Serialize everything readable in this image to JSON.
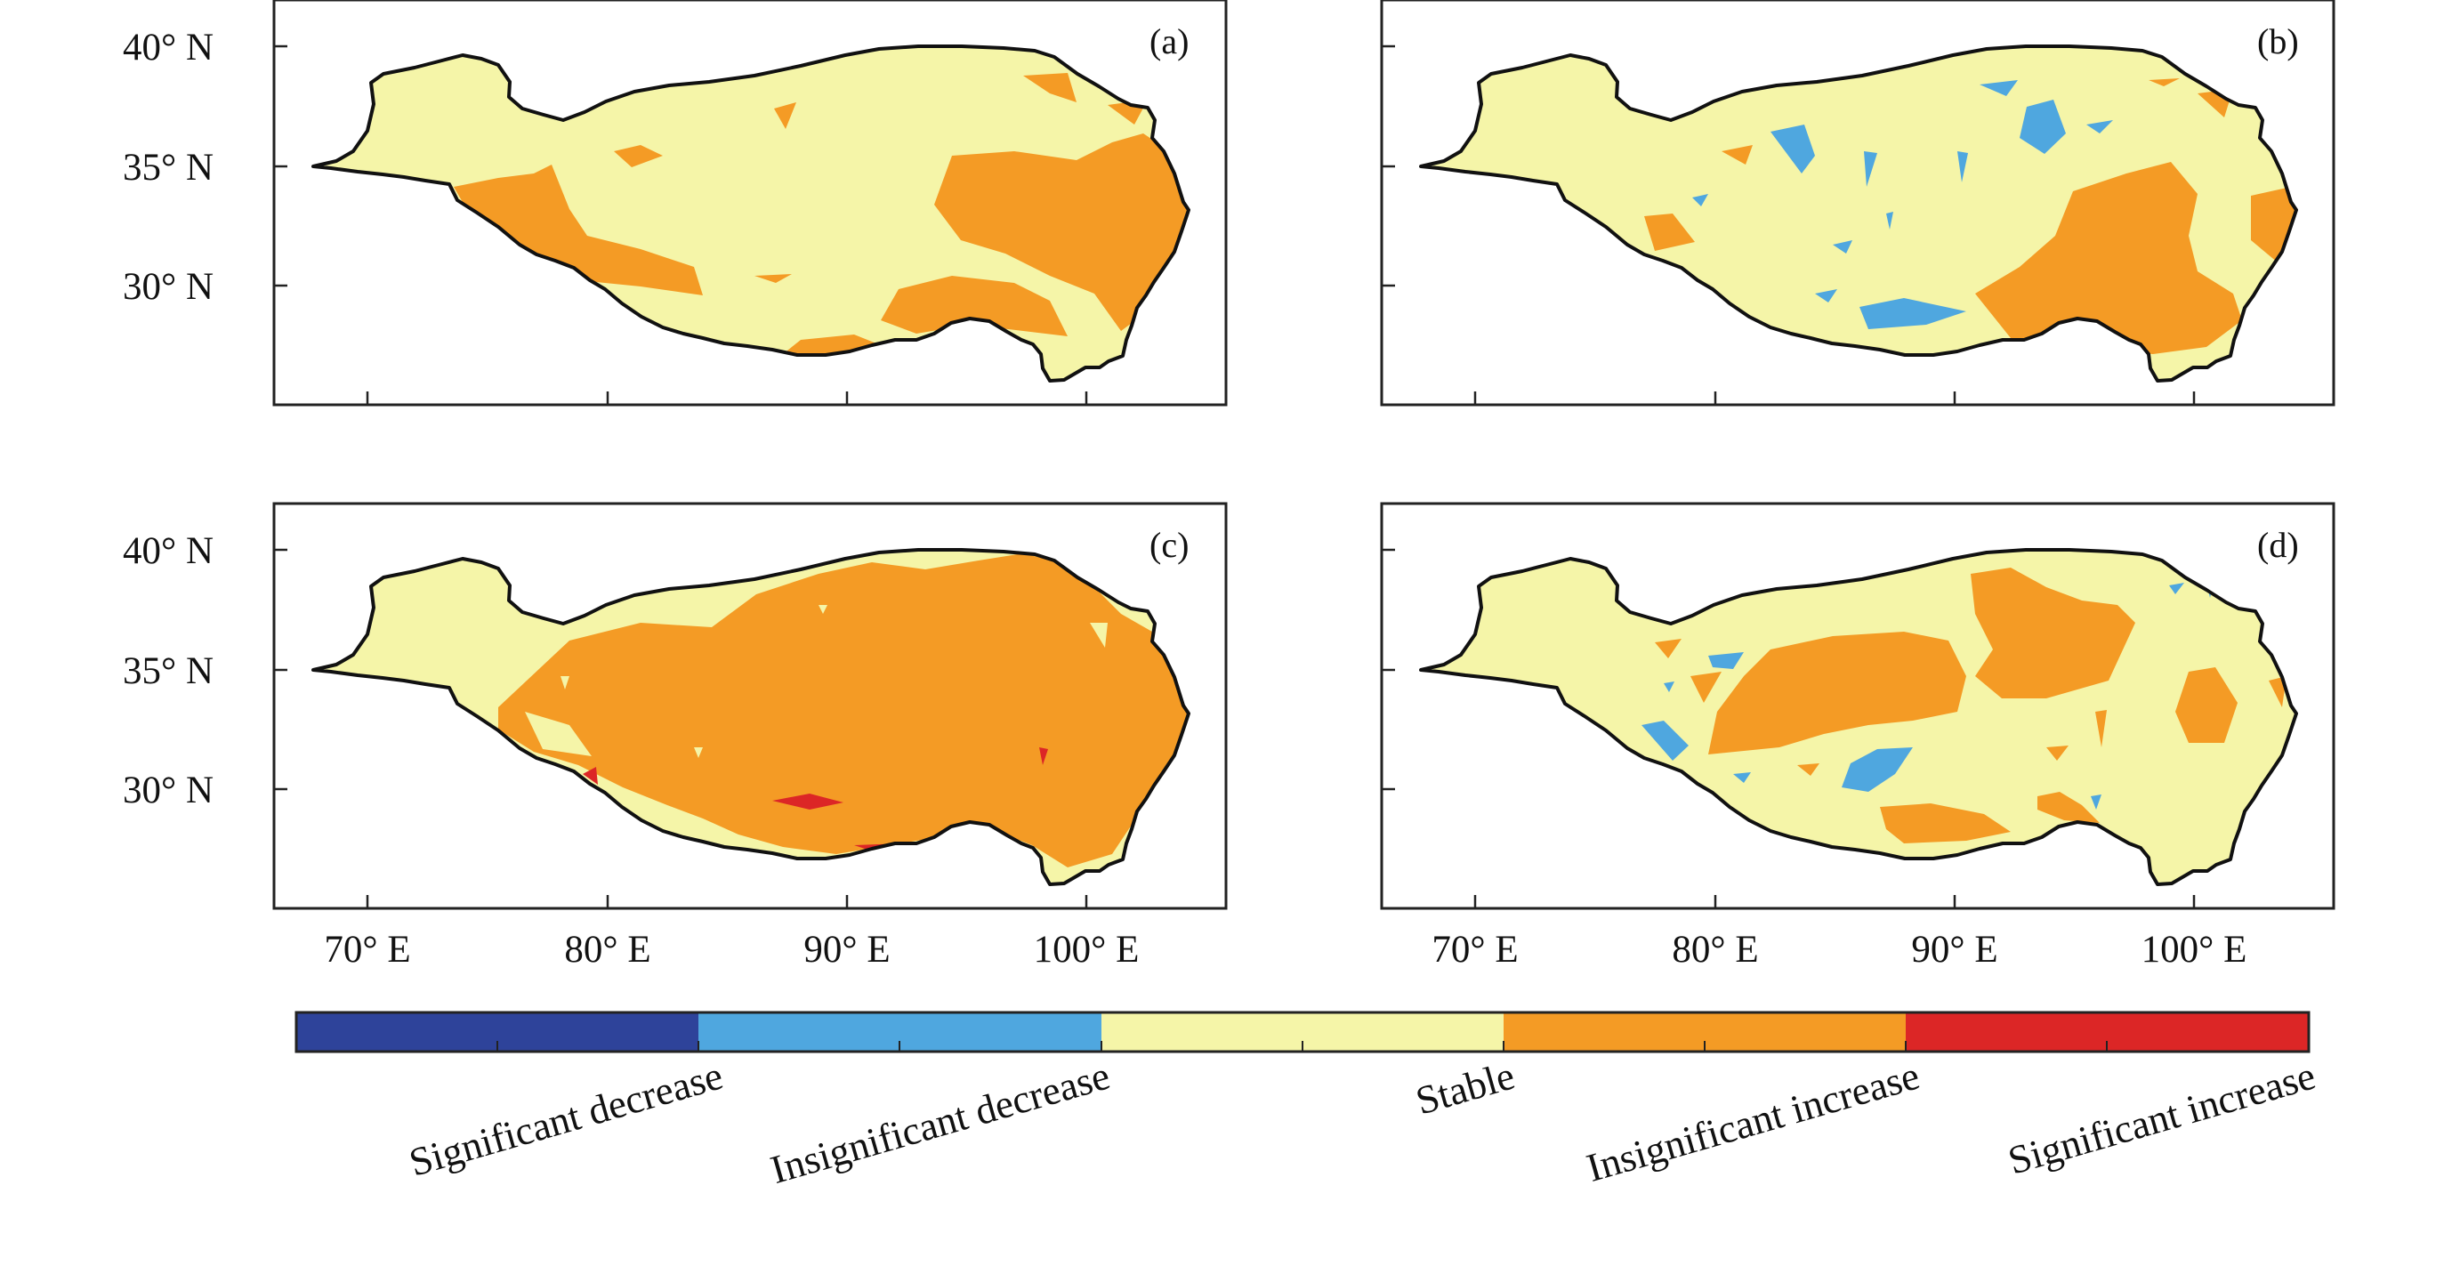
{
  "figure": {
    "panels": [
      {
        "id": "a",
        "label": "(a)"
      },
      {
        "id": "b",
        "label": "(b)"
      },
      {
        "id": "c",
        "label": "(c)"
      },
      {
        "id": "d",
        "label": "(d)"
      }
    ],
    "lon_tick_labels": [
      "70° E",
      "80° E",
      "90° E",
      "100° E"
    ],
    "lat_tick_labels": [
      "40° N",
      "35° N",
      "30° N"
    ],
    "lon_range": [
      66,
      106
    ],
    "lat_range": [
      25,
      42
    ]
  },
  "legend": {
    "items": [
      {
        "label": "Significant decrease",
        "color": "#2e439a"
      },
      {
        "label": "Insignificant decrease",
        "color": "#4fa7df"
      },
      {
        "label": "Stable",
        "color": "#f5f5a8"
      },
      {
        "label": "Insignificant increase",
        "color": "#f49b25"
      },
      {
        "label": "Significant increase",
        "color": "#dc2626"
      }
    ]
  }
}
